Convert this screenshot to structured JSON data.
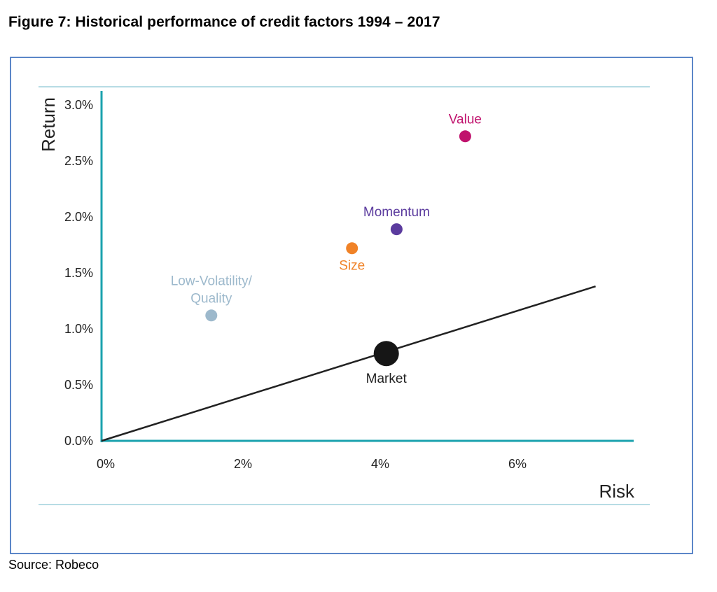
{
  "figure": {
    "title": "Figure 7: Historical performance of credit factors 1994 – 2017",
    "source": "Source: Robeco"
  },
  "chart_data": {
    "type": "scatter",
    "title": "",
    "xlabel": "Risk",
    "ylabel": "Return",
    "xlim": [
      0,
      8
    ],
    "ylim": [
      0,
      3.0
    ],
    "x_ticks": [
      0,
      2,
      4,
      6
    ],
    "x_tick_labels": [
      "0%",
      "2%",
      "4%",
      "6%"
    ],
    "y_ticks": [
      0,
      0.5,
      1.0,
      1.5,
      2.0,
      2.5,
      3.0
    ],
    "y_tick_labels": [
      "0.0%",
      "0.5%",
      "1.0%",
      "1.5%",
      "2.0%",
      "2.5%",
      "3.0%"
    ],
    "grid": false,
    "legend": "none",
    "points": [
      {
        "label_lines": [
          "Value"
        ],
        "x": 5.3,
        "y": 2.72,
        "color": "#c0126d",
        "size": "small",
        "label_pos": "above"
      },
      {
        "label_lines": [
          "Momentum"
        ],
        "x": 4.3,
        "y": 1.89,
        "color": "#5b3b9e",
        "size": "small",
        "label_pos": "above"
      },
      {
        "label_lines": [
          "Size"
        ],
        "x": 3.65,
        "y": 1.72,
        "color": "#f08227",
        "size": "small",
        "label_pos": "below"
      },
      {
        "label_lines": [
          "Low-Volatility/",
          "Quality"
        ],
        "x": 1.6,
        "y": 1.12,
        "color": "#9db9cc",
        "size": "small",
        "label_pos": "above"
      },
      {
        "label_lines": [
          "Market"
        ],
        "x": 4.15,
        "y": 0.78,
        "color": "#161616",
        "size": "large",
        "label_pos": "below"
      }
    ],
    "line": {
      "x": [
        0,
        7.2
      ],
      "y": [
        0,
        1.38
      ],
      "color": "#222222"
    },
    "colors": {
      "axis": "#1aa2ae",
      "rule": "#9fd0dc"
    }
  }
}
